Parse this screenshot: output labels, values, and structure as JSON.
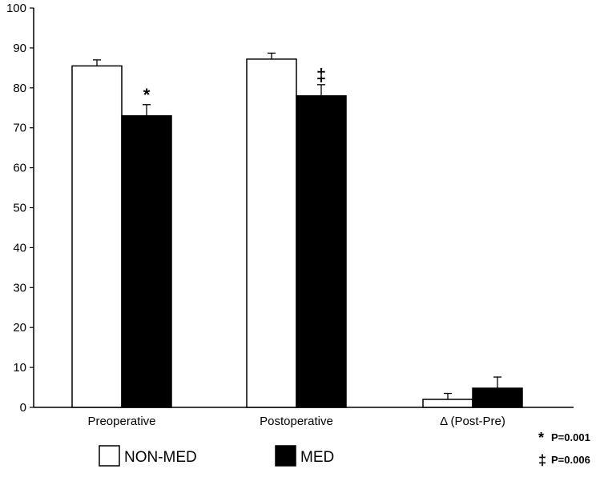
{
  "chart_data": {
    "type": "bar",
    "categories": [
      "Preoperative",
      "Postoperative",
      "Δ (Post-Pre)"
    ],
    "series": [
      {
        "name": "NON-MED",
        "values": [
          85.5,
          87.2,
          2.0
        ],
        "errors": [
          1.5,
          1.5,
          1.5
        ],
        "fill": "#ffffff",
        "markers": [
          "",
          "",
          ""
        ]
      },
      {
        "name": "MED",
        "values": [
          73.0,
          78.0,
          4.8
        ],
        "errors": [
          2.8,
          2.8,
          2.8
        ],
        "fill": "#000000",
        "markers": [
          "*",
          "‡",
          ""
        ]
      }
    ],
    "ylim": [
      0,
      100
    ],
    "yticks": [
      "0",
      "10",
      "20",
      "30",
      "40",
      "50",
      "60",
      "70",
      "80",
      "90",
      "100"
    ],
    "title": "",
    "xlabel": "",
    "ylabel": "",
    "grid": false,
    "legend_position": "bottom-left",
    "notes": [
      {
        "symbol": "*",
        "text": "P=0.001"
      },
      {
        "symbol": "‡",
        "text": "P=0.006"
      }
    ]
  }
}
